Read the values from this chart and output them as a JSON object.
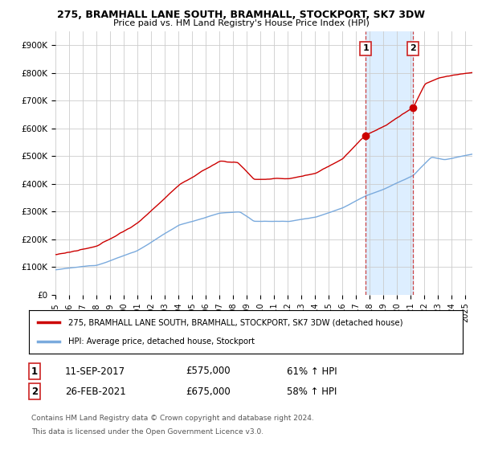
{
  "title1": "275, BRAMHALL LANE SOUTH, BRAMHALL, STOCKPORT, SK7 3DW",
  "title2": "Price paid vs. HM Land Registry's House Price Index (HPI)",
  "xlim_start": 1995.0,
  "xlim_end": 2025.5,
  "ylim": [
    0,
    950000
  ],
  "yticks": [
    0,
    100000,
    200000,
    300000,
    400000,
    500000,
    600000,
    700000,
    800000,
    900000
  ],
  "ytick_labels": [
    "£0",
    "£100K",
    "£200K",
    "£300K",
    "£400K",
    "£500K",
    "£600K",
    "£700K",
    "£800K",
    "£900K"
  ],
  "xticks": [
    1995,
    1996,
    1997,
    1998,
    1999,
    2000,
    2001,
    2002,
    2003,
    2004,
    2005,
    2006,
    2007,
    2008,
    2009,
    2010,
    2011,
    2012,
    2013,
    2014,
    2015,
    2016,
    2017,
    2018,
    2019,
    2020,
    2021,
    2022,
    2023,
    2024,
    2025
  ],
  "line1_color": "#cc0000",
  "line2_color": "#7aaadd",
  "shade_color": "#ddeeff",
  "legend_label1": "275, BRAMHALL LANE SOUTH, BRAMHALL, STOCKPORT, SK7 3DW (detached house)",
  "legend_label2": "HPI: Average price, detached house, Stockport",
  "sale1_date": 2017.69,
  "sale1_price": 575000,
  "sale2_date": 2021.15,
  "sale2_price": 675000,
  "footer1": "Contains HM Land Registry data © Crown copyright and database right 2024.",
  "footer2": "This data is licensed under the Open Government Licence v3.0.",
  "table_row1": [
    "1",
    "11-SEP-2017",
    "£575,000",
    "61% ↑ HPI"
  ],
  "table_row2": [
    "2",
    "26-FEB-2021",
    "£675,000",
    "58% ↑ HPI"
  ],
  "chart_bg": "#ffffff",
  "grid_color": "#cccccc"
}
